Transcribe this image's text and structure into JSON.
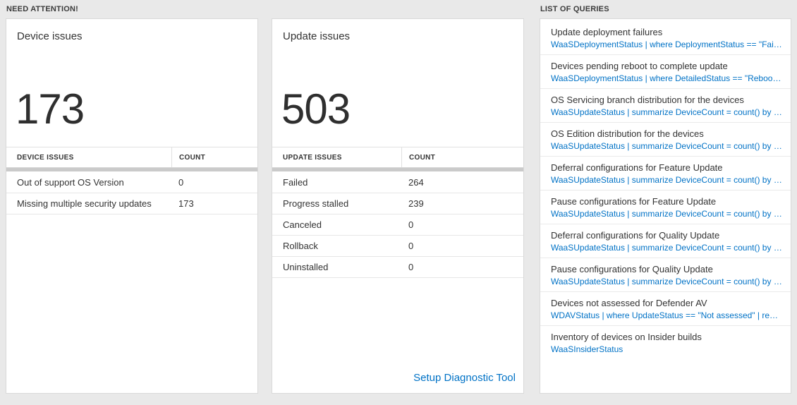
{
  "colors": {
    "accent": "#0072c6",
    "background": "#e9e9e9"
  },
  "need_attention": {
    "title": "NEED ATTENTION!",
    "device_card": {
      "title": "Device issues",
      "count": "173",
      "table": {
        "headers": [
          "DEVICE ISSUES",
          "COUNT"
        ],
        "rows": [
          [
            "Out of support OS Version",
            "0"
          ],
          [
            "Missing multiple security updates",
            "173"
          ]
        ]
      }
    },
    "update_card": {
      "title": "Update issues",
      "count": "503",
      "table": {
        "headers": [
          "UPDATE ISSUES",
          "COUNT"
        ],
        "rows": [
          [
            "Failed",
            "264"
          ],
          [
            "Progress stalled",
            "239"
          ],
          [
            "Canceled",
            "0"
          ],
          [
            "Rollback",
            "0"
          ],
          [
            "Uninstalled",
            "0"
          ]
        ]
      },
      "link_label": "Setup Diagnostic Tool"
    }
  },
  "queries": {
    "title": "LIST OF QUERIES",
    "items": [
      {
        "title": "Update deployment failures",
        "query": "WaaSDeploymentStatus | where DeploymentStatus == \"Failed\" |…"
      },
      {
        "title": "Devices pending reboot to complete update",
        "query": "WaaSDeploymentStatus | where DetailedStatus == \"Reboot pend…"
      },
      {
        "title": "OS Servicing branch distribution for the devices",
        "query": "WaaSUpdateStatus | summarize DeviceCount = count() by OSSer…"
      },
      {
        "title": "OS Edition distribution for the devices",
        "query": "WaaSUpdateStatus | summarize DeviceCount = count() by OSEdit…"
      },
      {
        "title": "Deferral configurations for Feature Update",
        "query": "WaaSUpdateStatus | summarize DeviceCount = count() by Featur…"
      },
      {
        "title": "Pause configurations for Feature Update",
        "query": "WaaSUpdateStatus | summarize DeviceCount = count() by Featur…"
      },
      {
        "title": "Deferral configurations for Quality Update",
        "query": "WaaSUpdateStatus | summarize DeviceCount = count() by Qualit…"
      },
      {
        "title": "Pause configurations for Quality Update",
        "query": "WaaSUpdateStatus | summarize DeviceCount = count() by Qualit…"
      },
      {
        "title": "Devices not assessed for Defender AV",
        "query": "WDAVStatus | where UpdateStatus == \"Not assessed\" | render ta…"
      },
      {
        "title": "Inventory of devices on Insider builds",
        "query": "WaaSInsiderStatus"
      }
    ]
  }
}
